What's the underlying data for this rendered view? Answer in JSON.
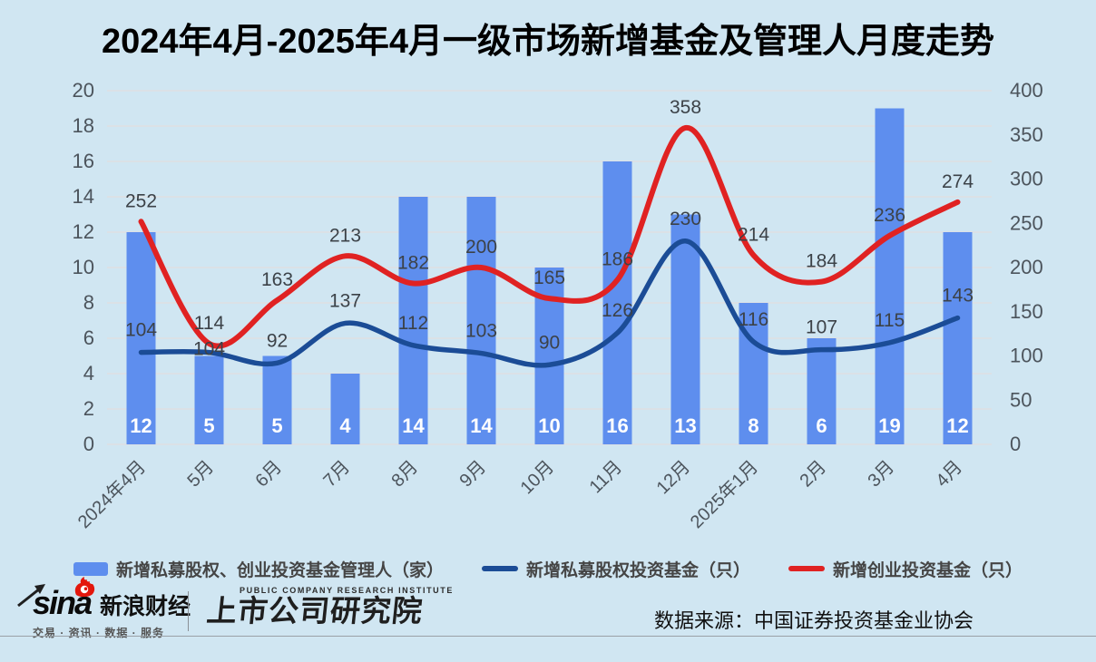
{
  "title": {
    "text": "2024年4月-2025年4月一级市场新增基金及管理人月度走势"
  },
  "colors": {
    "background": "#d0e6f2",
    "bar": "#5e8eee",
    "pe_line": "#1b4c96",
    "vc_line": "#e02222",
    "grid": "#e6dcda",
    "axis_text": "#4c545c",
    "data_label_text": "#3c4248",
    "bar_label_text": "#ffffff",
    "title_text": "#000000",
    "legend_text": "#454545"
  },
  "chart_data": {
    "type": "bar",
    "subtype": "combo-bar-line",
    "smooth_lines": true,
    "grid": true,
    "legend_position": "bottom",
    "categories": [
      "2024年4月",
      "5月",
      "6月",
      "7月",
      "8月",
      "9月",
      "10月",
      "11月",
      "12月",
      "2025年1月",
      "2月",
      "3月",
      "4月"
    ],
    "series": [
      {
        "name": "新增私募股权、创业投资基金管理人（家）",
        "type": "bar",
        "y_axis": "left",
        "color": "#5e8eee",
        "values": [
          12,
          5,
          5,
          4,
          14,
          14,
          10,
          16,
          13,
          8,
          6,
          19,
          12
        ]
      },
      {
        "name": "新增私募股权投资基金（只）",
        "type": "line",
        "y_axis": "right",
        "color": "#1b4c96",
        "values": [
          104,
          104,
          92,
          137,
          112,
          103,
          90,
          126,
          230,
          116,
          107,
          115,
          143
        ]
      },
      {
        "name": "新增创业投资基金（只）",
        "type": "line",
        "y_axis": "right",
        "color": "#e02222",
        "values": [
          252,
          114,
          163,
          213,
          182,
          200,
          165,
          186,
          358,
          214,
          184,
          236,
          274
        ]
      }
    ],
    "left_axis": {
      "min": 0,
      "max": 20,
      "step": 2,
      "ticks": [
        0,
        2,
        4,
        6,
        8,
        10,
        12,
        14,
        16,
        18,
        20
      ]
    },
    "right_axis": {
      "min": 0,
      "max": 400,
      "step": 50,
      "ticks": [
        0,
        50,
        100,
        150,
        200,
        250,
        300,
        350,
        400
      ]
    }
  },
  "footer": {
    "sina_logo_text": "sina",
    "sina_brand": "新浪财经",
    "sina_tagline": "交易 · 资讯 · 数据 · 服务",
    "institute_en": "PUBLIC COMPANY RESEARCH INSTITUTE",
    "institute_cn": "上市公司研究院",
    "data_source": "数据来源：中国证券投资基金业协会"
  }
}
